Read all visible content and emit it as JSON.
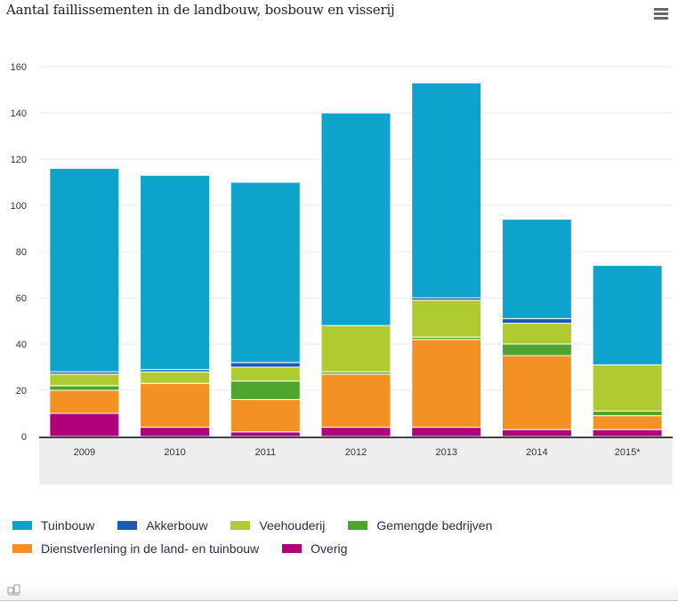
{
  "chart_data": {
    "type": "bar",
    "stacked": true,
    "title": "Aantal faillissementen in de landbouw, bosbouw en visserij",
    "xlabel": "",
    "ylabel": "",
    "ylim": [
      0,
      160
    ],
    "yticks": [
      0,
      20,
      40,
      60,
      80,
      100,
      120,
      140,
      160
    ],
    "ytick_labels": [
      "0",
      "20",
      "40",
      "60",
      "80",
      "100",
      "120",
      "140",
      "160"
    ],
    "grid": true,
    "legend_position": "bottom",
    "categories": [
      "2009",
      "2010",
      "2011",
      "2012",
      "2013",
      "2014",
      "2015*"
    ],
    "series": [
      {
        "name": "Overig",
        "color": "#b0007c",
        "values": [
          10,
          4,
          2,
          4,
          4,
          3,
          3
        ]
      },
      {
        "name": "Dienstverlening in de land- en tuinbouw",
        "color": "#f39125",
        "values": [
          10,
          19,
          14,
          23,
          38,
          32,
          6
        ]
      },
      {
        "name": "Gemengde bedrijven",
        "color": "#4ea42f",
        "values": [
          2,
          0,
          8,
          1,
          1,
          5,
          2
        ]
      },
      {
        "name": "Veehouderij",
        "color": "#afcb2f",
        "values": [
          5,
          5,
          6,
          20,
          16,
          9,
          20
        ]
      },
      {
        "name": "Akkerbouw",
        "color": "#1b5bb6",
        "values": [
          1,
          1,
          2,
          0,
          1,
          2,
          0
        ]
      },
      {
        "name": "Tuinbouw",
        "color": "#0ea3cc",
        "values": [
          88,
          84,
          78,
          92,
          93,
          43,
          43
        ]
      }
    ]
  },
  "legend": {
    "rows": [
      [
        {
          "label": "Tuinbouw",
          "color": "#0ea3cc"
        },
        {
          "label": "Akkerbouw",
          "color": "#1b5bb6"
        },
        {
          "label": "Veehouderij",
          "color": "#afcb2f"
        },
        {
          "label": "Gemengde bedrijven",
          "color": "#4ea42f"
        }
      ],
      [
        {
          "label": "Dienstverlening in de land- en tuinbouw",
          "color": "#f39125"
        },
        {
          "label": "Overig",
          "color": "#b0007c"
        }
      ]
    ]
  },
  "menu": {
    "icon": "hamburger-menu-icon"
  },
  "footer": {
    "logo": "cbs-logo"
  }
}
